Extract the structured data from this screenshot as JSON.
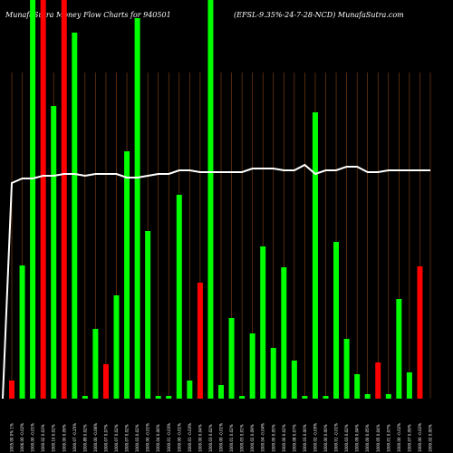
{
  "chart_data": {
    "type": "bar",
    "title_left": "MunafaSutra Money Flow  Charts for 940501",
    "title_right": "(EFSL-9.35%-24-7-28-NCD) MunafaSutra.com",
    "background": "#000000",
    "colors": {
      "up": "#00ff00",
      "down": "#ff0000",
      "line": "#ffffff",
      "grid": "#8b4513"
    },
    "ylim": [
      0,
      440
    ],
    "line_ylim": [
      0,
      440
    ],
    "categories": [
      "Mon 11 Nov 2024",
      "Fri 08 Nov 2024",
      "Thu 07 Nov 2024",
      "Wed 06 Nov 2024",
      "Tue 05 Nov 2024",
      "Mon 04 Nov 2024",
      "Fri 01 Nov 2024",
      "Thu 31 Oct 2024",
      "Wed 30 Oct 2024",
      "Tue 29 Oct 2024",
      "Mon 28 Oct 2024",
      "Fri 25 Oct 2024",
      "Thu 24 Oct 2024",
      "Wed 23 Oct 2024",
      "Tue 22 Oct 2024",
      "Mon 21 Oct 2024",
      "Fri 18 Oct 2024",
      "Thu 17 Oct 2024",
      "Wed 16 Oct 2024",
      "Tue 15 Oct 2024",
      "Mon 14 Oct 2024",
      "Fri 11 Oct 2024",
      "Thu 10 Oct 2024",
      "Wed 09 Oct 2024",
      "Tue 08 Oct 2024",
      "Mon 07 Oct 2024",
      "Fri 04 Oct 2024",
      "Thu 03 Oct 2024",
      "Tue 01 Oct 2024",
      "Mon 30 Sep 2024",
      "Fri 27 Sep 2024",
      "Thu 26 Sep 2024",
      "Wed 25 Sep 2024",
      "Tue 24 Sep 2024",
      "Mon 23 Sep 2024",
      "Fri 20 Sep 2024",
      "Thu 19 Sep 2024",
      "Wed 18 Sep 2024",
      "Tue 17 Sep 2024",
      "Mon 16 Sep 2024",
      "Fri 13 Sep 2024"
    ],
    "tick_labels": [
      "1005.00 0% 1%",
      "1006.00 -0.02%",
      "1000.00 -0.01%",
      "1000.02 0.03%",
      "1000.10 0.02%",
      "1000.00 0.09%",
      "1000.07 -0.25%",
      "1000.89 0.02%",
      "1000.00 -0.06%",
      "1000.07 0.07%",
      "1000.07 0.02%",
      "1000.07 0.02%",
      "1000.03 0.02%",
      "1000.00 -0.01%",
      "1000.04 0.06%",
      "1000.01 -0.03%",
      "1000.00 -0.01%",
      "1000.01 -0.03%",
      "1000.00 0.04%",
      "1000.03 0.02%",
      "1000.00 -0.01%",
      "1000.01 0.02%",
      "1000.03 0.01%",
      "1000.02 0.09%",
      "1000.04 -0.04%",
      "1000.00 0.05%",
      "1000.00 0.02%",
      "1000.08 0.07%",
      "1000.03 0.00%",
      "1000.02 -0.05%",
      "1000.00 0.00%",
      "1000.01 -0.01%",
      "1000.03 0.02%",
      "1000.09 0.04%",
      "1000.00 0.05%",
      "1000.05 0.04%",
      "1000.01 0.07%",
      "1000.00 -0.02%",
      "1000.07 0.09%",
      "1000.00 -0.02%",
      "1000.02 0.00%"
    ],
    "series": [
      {
        "values": [
          20,
          147,
          440,
          440,
          323,
          440,
          404,
          3,
          77,
          38,
          114,
          273,
          420,
          185,
          3,
          3,
          225,
          20,
          128,
          440,
          15,
          89,
          3,
          72,
          168,
          56,
          145,
          42,
          3,
          316,
          3,
          173,
          66,
          27,
          5,
          40,
          5,
          110,
          29,
          146,
          0
        ],
        "directions": [
          "down",
          "up",
          "up",
          "down",
          "up",
          "down",
          "up",
          "up",
          "up",
          "down",
          "up",
          "up",
          "up",
          "up",
          "up",
          "up",
          "up",
          "up",
          "down",
          "up",
          "up",
          "up",
          "up",
          "up",
          "up",
          "up",
          "up",
          "up",
          "up",
          "up",
          "up",
          "up",
          "up",
          "up",
          "up",
          "down",
          "up",
          "up",
          "up",
          "down",
          "up"
        ]
      }
    ],
    "line_values": [
      238,
      243,
      243,
      246,
      246,
      248,
      248,
      246,
      248,
      248,
      248,
      244,
      244,
      246,
      248,
      248,
      252,
      252,
      250,
      250,
      250,
      250,
      250,
      254,
      254,
      254,
      252,
      252,
      258,
      248,
      252,
      252,
      256,
      256,
      250,
      250,
      252,
      252,
      252,
      252,
      252
    ]
  }
}
